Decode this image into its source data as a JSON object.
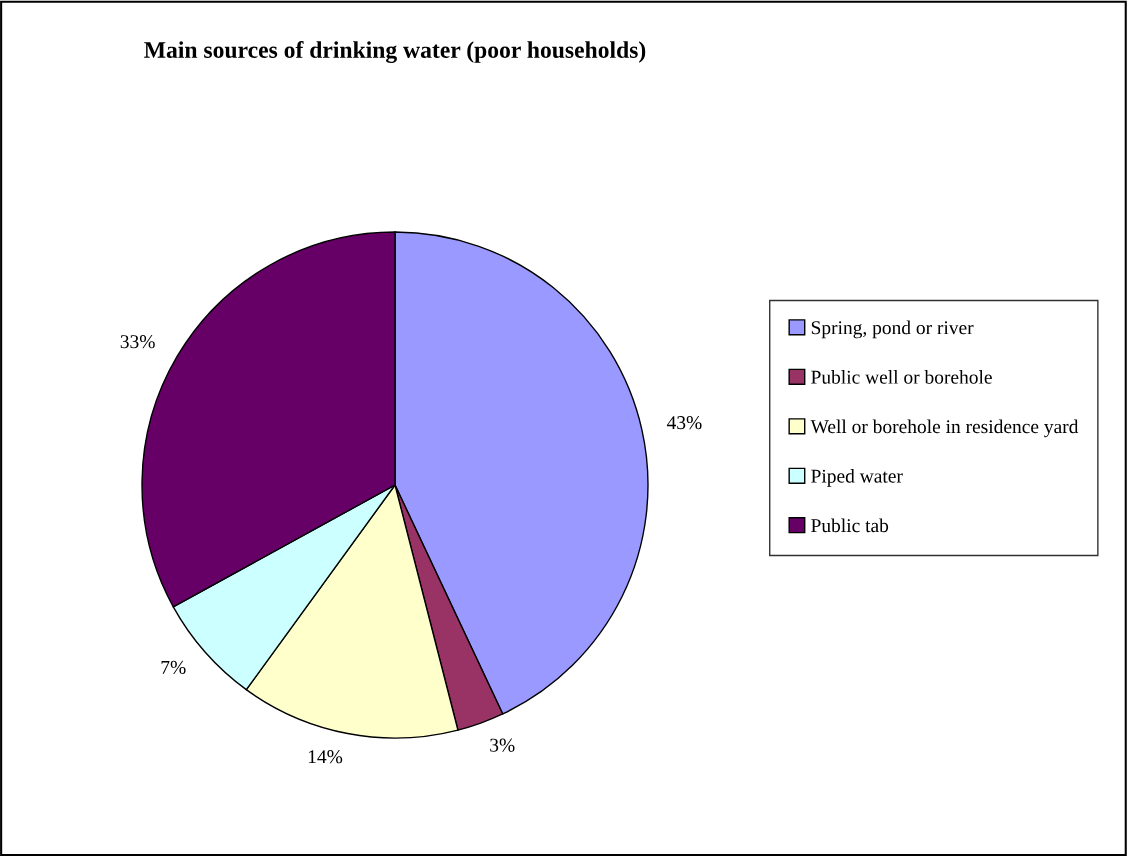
{
  "chart_data": {
    "type": "pie",
    "title": "Main sources of drinking water (poor households)",
    "categories": [
      "Spring, pond or river",
      "Public well or borehole",
      "Well or borehole in residence yard",
      "Piped water",
      "Public tab"
    ],
    "values": [
      43,
      3,
      14,
      7,
      33
    ],
    "colors": [
      "#9999ff",
      "#993366",
      "#ffffcc",
      "#ccffff",
      "#660066"
    ],
    "value_labels": [
      "43%",
      "3%",
      "14%",
      "7%",
      "33%"
    ],
    "legend": "right"
  }
}
